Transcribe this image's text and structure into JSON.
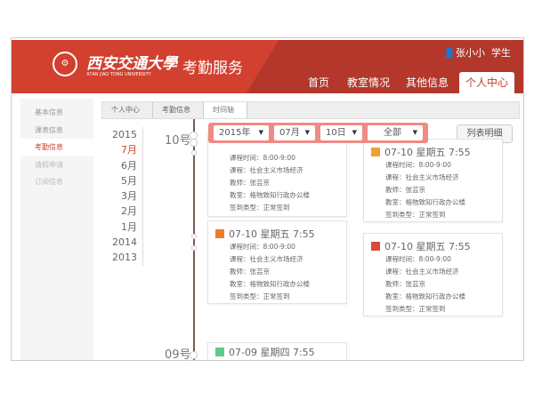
{
  "header": {
    "university_cn": "西安交通大學",
    "university_en": "XI'AN JIAO TONG UNIVERSITY",
    "service": "考勤服务",
    "user": "张小小",
    "role": "学生",
    "nav": [
      {
        "label": "首页"
      },
      {
        "label": "教室情况"
      },
      {
        "label": "其他信息"
      },
      {
        "label": "个人中心",
        "active": true
      }
    ]
  },
  "sidebar": {
    "items": [
      {
        "label": "基本信息"
      },
      {
        "label": "课表信息"
      },
      {
        "label": "考勤信息",
        "active": true
      },
      {
        "label": "请假申请"
      },
      {
        "label": "订阅信息"
      }
    ]
  },
  "breadcrumb": [
    "个人中心",
    "考勤信息",
    "时间轴"
  ],
  "years": [
    "2015",
    "7月",
    "6月",
    "5月",
    "3月",
    "2月",
    "1月",
    "2014",
    "2013"
  ],
  "days": [
    "10号",
    "09号"
  ],
  "filter": {
    "year": "2015年",
    "month": "07月",
    "day": "10日",
    "type": "全部"
  },
  "list_button": "列表明细",
  "labels": {
    "time": "课程时间：",
    "course": "课程：",
    "teacher": "教师：",
    "room": "教室：",
    "type": "签到类型："
  },
  "cards": [
    {
      "title": "07-10 星期五 7:55",
      "time": "8:00-9:00",
      "course": "社会主义市场经济",
      "teacher": "张芸京",
      "room": "格物致知行政办公楼",
      "type": "正常签到",
      "icon_color": "#f0a030"
    },
    {
      "title": "07-10 星期五 7:55",
      "time": "8:00-9:00",
      "course": "社会主义市场经济",
      "teacher": "张芸京",
      "room": "格物致知行政办公楼",
      "type": "正常签到",
      "icon_color": "#f0a030"
    },
    {
      "title": "07-10 星期五 7:55",
      "time": "8:00-9:00",
      "course": "社会主义市场经济",
      "teacher": "张芸京",
      "room": "格物致知行政办公楼",
      "type": "正常签到",
      "icon_color": "#ef7a2e"
    },
    {
      "title": "07-10 星期五 7:55",
      "time": "8:00-9:00",
      "course": "社会主义市场经济",
      "teacher": "张芸京",
      "room": "格物致知行政办公楼",
      "type": "正常签到",
      "icon_color": "#d8483c"
    },
    {
      "title": "07-09 星期四 7:55",
      "icon_color": "#5ccc8c"
    }
  ],
  "colors": {
    "brand": "#d2402f",
    "brand_dark": "#b3372b",
    "filter": "#f08a84",
    "timeline": "#7a5a55"
  }
}
